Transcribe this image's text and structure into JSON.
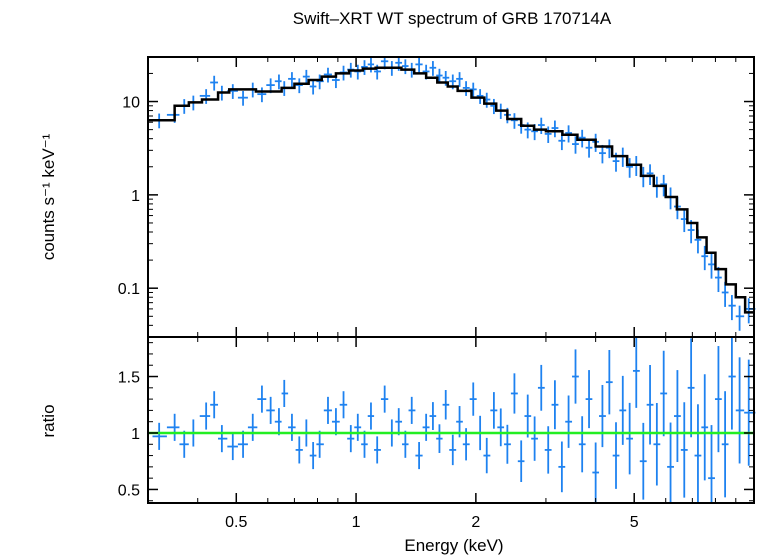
{
  "title": "Swift–XRT WT spectrum of GRB 170714A",
  "chart_data": [
    {
      "type": "scatter",
      "panel": "spectrum",
      "xlabel": "Energy (keV)",
      "ylabel": "counts s⁻¹ keV⁻¹",
      "xscale": "log",
      "yscale": "log",
      "xlim": [
        0.3,
        10.0
      ],
      "ylim": [
        0.03,
        30
      ],
      "yticks": [
        {
          "value": 0.1,
          "label": "0.1"
        },
        {
          "value": 1,
          "label": "1"
        },
        {
          "value": 10,
          "label": "10"
        }
      ],
      "colors": {
        "data": "#1e82f0",
        "model": "#000000"
      },
      "series": [
        {
          "kind": "data",
          "points": [
            [
              0.32,
              6.3
            ],
            [
              0.35,
              7.2
            ],
            [
              0.37,
              9.0
            ],
            [
              0.39,
              9.8
            ],
            [
              0.42,
              11.5
            ],
            [
              0.44,
              16.0
            ],
            [
              0.46,
              12.5
            ],
            [
              0.49,
              13.0
            ],
            [
              0.52,
              11.0
            ],
            [
              0.55,
              13.5
            ],
            [
              0.58,
              12.0
            ],
            [
              0.61,
              15.0
            ],
            [
              0.64,
              16.5
            ],
            [
              0.66,
              14.0
            ],
            [
              0.69,
              17.5
            ],
            [
              0.72,
              15.0
            ],
            [
              0.75,
              18.5
            ],
            [
              0.78,
              14.5
            ],
            [
              0.81,
              16.5
            ],
            [
              0.85,
              19.5
            ],
            [
              0.89,
              17.0
            ],
            [
              0.93,
              20.5
            ],
            [
              0.97,
              22.0
            ],
            [
              1.01,
              21.0
            ],
            [
              1.05,
              23.5
            ],
            [
              1.09,
              25.0
            ],
            [
              1.13,
              21.0
            ],
            [
              1.18,
              27.0
            ],
            [
              1.23,
              23.0
            ],
            [
              1.28,
              26.0
            ],
            [
              1.33,
              24.0
            ],
            [
              1.38,
              22.0
            ],
            [
              1.44,
              25.0
            ],
            [
              1.5,
              21.0
            ],
            [
              1.56,
              23.0
            ],
            [
              1.62,
              19.0
            ],
            [
              1.68,
              18.0
            ],
            [
              1.75,
              16.5
            ],
            [
              1.82,
              17.5
            ],
            [
              1.89,
              14.0
            ],
            [
              1.97,
              13.5
            ],
            [
              2.05,
              11.5
            ],
            [
              2.13,
              10.5
            ],
            [
              2.22,
              9.0
            ],
            [
              2.31,
              8.0
            ],
            [
              2.4,
              7.2
            ],
            [
              2.5,
              6.3
            ],
            [
              2.6,
              5.6
            ],
            [
              2.7,
              5.0
            ],
            [
              2.81,
              4.8
            ],
            [
              2.92,
              5.6
            ],
            [
              3.04,
              4.5
            ],
            [
              3.16,
              5.2
            ],
            [
              3.29,
              3.8
            ],
            [
              3.42,
              4.6
            ],
            [
              3.56,
              3.5
            ],
            [
              3.7,
              4.1
            ],
            [
              3.85,
              3.2
            ],
            [
              4.0,
              3.7
            ],
            [
              4.16,
              2.8
            ],
            [
              4.33,
              3.2
            ],
            [
              4.5,
              2.3
            ],
            [
              4.68,
              2.6
            ],
            [
              4.87,
              2.0
            ],
            [
              5.06,
              2.1
            ],
            [
              5.27,
              1.6
            ],
            [
              5.48,
              1.7
            ],
            [
              5.7,
              1.25
            ],
            [
              5.93,
              1.3
            ],
            [
              6.17,
              0.95
            ],
            [
              6.42,
              0.75
            ],
            [
              6.68,
              0.55
            ],
            [
              6.95,
              0.42
            ],
            [
              7.23,
              0.33
            ],
            [
              7.52,
              0.22
            ],
            [
              7.82,
              0.18
            ],
            [
              8.14,
              0.13
            ],
            [
              8.46,
              0.09
            ],
            [
              8.8,
              0.065
            ],
            [
              9.2,
              0.05
            ],
            [
              9.7,
              0.06
            ]
          ]
        },
        {
          "kind": "model",
          "points": [
            [
              0.3,
              6.3
            ],
            [
              0.33,
              6.3
            ],
            [
              0.35,
              9.0
            ],
            [
              0.38,
              9.8
            ],
            [
              0.41,
              10.5
            ],
            [
              0.45,
              12.5
            ],
            [
              0.48,
              13.5
            ],
            [
              0.52,
              13.5
            ],
            [
              0.56,
              12.8
            ],
            [
              0.6,
              12.8
            ],
            [
              0.65,
              14.0
            ],
            [
              0.7,
              15.5
            ],
            [
              0.76,
              17.0
            ],
            [
              0.82,
              18.5
            ],
            [
              0.89,
              20.0
            ],
            [
              0.96,
              21.5
            ],
            [
              1.04,
              22.5
            ],
            [
              1.12,
              23.0
            ],
            [
              1.2,
              23.0
            ],
            [
              1.3,
              22.0
            ],
            [
              1.4,
              20.0
            ],
            [
              1.5,
              18.0
            ],
            [
              1.6,
              16.0
            ],
            [
              1.7,
              14.5
            ],
            [
              1.8,
              13.0
            ],
            [
              1.95,
              11.0
            ],
            [
              2.1,
              9.5
            ],
            [
              2.25,
              8.0
            ],
            [
              2.4,
              6.5
            ],
            [
              2.6,
              5.5
            ],
            [
              2.8,
              5.0
            ],
            [
              3.0,
              4.8
            ],
            [
              3.3,
              4.4
            ],
            [
              3.6,
              3.9
            ],
            [
              4.0,
              3.3
            ],
            [
              4.4,
              2.6
            ],
            [
              4.8,
              2.1
            ],
            [
              5.2,
              1.6
            ],
            [
              5.6,
              1.25
            ],
            [
              6.0,
              0.95
            ],
            [
              6.4,
              0.7
            ],
            [
              6.8,
              0.5
            ],
            [
              7.2,
              0.35
            ],
            [
              7.6,
              0.24
            ],
            [
              8.0,
              0.16
            ],
            [
              8.5,
              0.11
            ],
            [
              9.0,
              0.08
            ],
            [
              9.5,
              0.055
            ],
            [
              10.0,
              0.055
            ]
          ]
        }
      ]
    },
    {
      "type": "scatter",
      "panel": "ratio",
      "xlabel": "Energy (keV)",
      "ylabel": "ratio",
      "xscale": "log",
      "yscale": "linear",
      "xlim": [
        0.3,
        10.0
      ],
      "ylim": [
        0.38,
        1.85
      ],
      "xticks": [
        {
          "value": 0.5,
          "label": "0.5"
        },
        {
          "value": 1,
          "label": "1"
        },
        {
          "value": 2,
          "label": "2"
        },
        {
          "value": 5,
          "label": "5"
        }
      ],
      "yticks": [
        {
          "value": 0.5,
          "label": "0.5"
        },
        {
          "value": 1,
          "label": "1"
        },
        {
          "value": 1.5,
          "label": "1.5"
        }
      ],
      "reference_line": 1.0,
      "colors": {
        "data": "#1e82f0",
        "reference": "#22ee22"
      },
      "series": [
        {
          "kind": "data",
          "points": [
            [
              0.32,
              0.97
            ],
            [
              0.35,
              1.05
            ],
            [
              0.37,
              0.9
            ],
            [
              0.39,
              1.0
            ],
            [
              0.42,
              1.15
            ],
            [
              0.44,
              1.25
            ],
            [
              0.46,
              0.95
            ],
            [
              0.49,
              0.88
            ],
            [
              0.52,
              0.9
            ],
            [
              0.55,
              1.05
            ],
            [
              0.58,
              1.3
            ],
            [
              0.61,
              1.2
            ],
            [
              0.64,
              1.1
            ],
            [
              0.66,
              1.35
            ],
            [
              0.69,
              1.05
            ],
            [
              0.72,
              0.85
            ],
            [
              0.75,
              1.0
            ],
            [
              0.78,
              0.8
            ],
            [
              0.81,
              0.9
            ],
            [
              0.85,
              1.2
            ],
            [
              0.89,
              1.1
            ],
            [
              0.93,
              1.25
            ],
            [
              0.97,
              0.95
            ],
            [
              1.01,
              1.05
            ],
            [
              1.05,
              0.9
            ],
            [
              1.09,
              1.15
            ],
            [
              1.13,
              0.85
            ],
            [
              1.18,
              1.3
            ],
            [
              1.23,
              1.0
            ],
            [
              1.28,
              1.1
            ],
            [
              1.33,
              0.9
            ],
            [
              1.38,
              1.2
            ],
            [
              1.44,
              0.8
            ],
            [
              1.5,
              1.05
            ],
            [
              1.56,
              1.15
            ],
            [
              1.62,
              0.95
            ],
            [
              1.68,
              1.25
            ],
            [
              1.75,
              0.85
            ],
            [
              1.82,
              1.1
            ],
            [
              1.89,
              0.9
            ],
            [
              1.97,
              1.3
            ],
            [
              2.05,
              1.0
            ],
            [
              2.13,
              0.8
            ],
            [
              2.22,
              1.2
            ],
            [
              2.31,
              1.05
            ],
            [
              2.4,
              0.9
            ],
            [
              2.5,
              1.35
            ],
            [
              2.6,
              0.75
            ],
            [
              2.7,
              1.15
            ],
            [
              2.81,
              0.95
            ],
            [
              2.92,
              1.4
            ],
            [
              3.04,
              0.85
            ],
            [
              3.16,
              1.25
            ],
            [
              3.29,
              0.7
            ],
            [
              3.42,
              1.1
            ],
            [
              3.56,
              1.5
            ],
            [
              3.7,
              0.9
            ],
            [
              3.85,
              1.3
            ],
            [
              4.0,
              0.65
            ],
            [
              4.16,
              1.15
            ],
            [
              4.33,
              1.45
            ],
            [
              4.5,
              0.8
            ],
            [
              4.68,
              1.2
            ],
            [
              4.87,
              0.95
            ],
            [
              5.06,
              1.55
            ],
            [
              5.27,
              0.75
            ],
            [
              5.48,
              1.25
            ],
            [
              5.7,
              0.9
            ],
            [
              5.93,
              1.35
            ],
            [
              6.17,
              0.7
            ],
            [
              6.42,
              1.15
            ],
            [
              6.68,
              0.85
            ],
            [
              6.95,
              1.4
            ],
            [
              7.23,
              0.8
            ],
            [
              7.52,
              1.05
            ],
            [
              7.82,
              0.6
            ],
            [
              8.14,
              1.3
            ],
            [
              8.46,
              0.9
            ],
            [
              8.8,
              1.5
            ],
            [
              9.2,
              1.2
            ],
            [
              9.7,
              1.18
            ]
          ]
        }
      ]
    }
  ]
}
